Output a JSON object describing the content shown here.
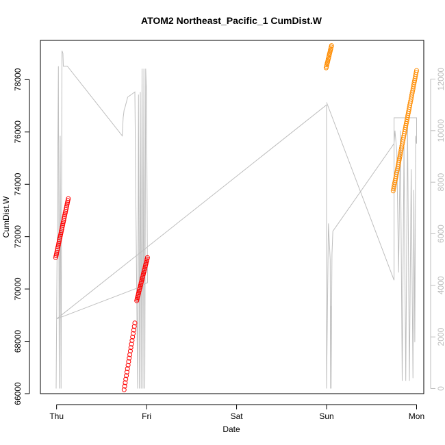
{
  "chart_data": {
    "type": "scatter",
    "title": "ATOM2 Northeast_Pacific_1 CumDist.W",
    "xlabel": "Date",
    "ylabel": "CumDist.W",
    "x_unit": "days since Thu 00:00",
    "xlim": [
      -0.18,
      4.08
    ],
    "ylim": [
      66000,
      79500
    ],
    "y_ticks": [
      66000,
      68000,
      70000,
      72000,
      74000,
      76000,
      78000
    ],
    "x_ticks": [
      {
        "value": 0,
        "label": "Thu"
      },
      {
        "value": 1,
        "label": "Fri"
      },
      {
        "value": 2,
        "label": "Sat"
      },
      {
        "value": 3,
        "label": "Sun"
      },
      {
        "value": 4,
        "label": "Mon"
      }
    ],
    "right_axis": {
      "ylim": [
        -200,
        13500
      ],
      "ticks": [
        0,
        2000,
        4000,
        6000,
        8000,
        10000,
        12000
      ],
      "color": "#bebebe"
    },
    "series": [
      {
        "kind": "points",
        "color": "#ff0000",
        "segments": [
          {
            "x": [
              -0.01,
              0.13
            ],
            "y": [
              71200,
              73450
            ],
            "n": 34
          },
          {
            "x": 0.75,
            "y_range": [
              66150,
              68700
            ],
            "n": 20,
            "mode": "sparse",
            "x_end": 0.87
          },
          {
            "x": [
              0.89,
              1.01
            ],
            "y": [
              69550,
              71200
            ],
            "n": 28
          }
        ]
      },
      {
        "kind": "points",
        "color": "#ff8c00",
        "segments": [
          {
            "x": [
              2.995,
              3.055
            ],
            "y": [
              78450,
              79300
            ],
            "n": 16
          },
          {
            "x": [
              3.74,
              4.0
            ],
            "y": [
              73750,
              78350
            ],
            "n": 60
          }
        ]
      },
      {
        "kind": "line",
        "axis": "right",
        "color": "#bebebe",
        "x": [
          -0.005,
          -0.005,
          0.0,
          0.02,
          0.03,
          0.04,
          0.05,
          0.06,
          0.07,
          0.075,
          0.085,
          0.095,
          0.1,
          0.12,
          0.73,
          0.74,
          0.75,
          0.76,
          0.79,
          0.83,
          0.87,
          0.9,
          0.91,
          0.92,
          0.93,
          0.94,
          0.95,
          0.96,
          0.97,
          0.98,
          0.99,
          1.0,
          1.01,
          1.005,
          0.95,
          0.9,
          0.0,
          0.0,
          3.0,
          3.0,
          3.02,
          3.04,
          3.045,
          3.045,
          3.05,
          3.06,
          3.07,
          3.75,
          3.76,
          3.78,
          3.8,
          3.82,
          3.84,
          3.86,
          3.88,
          3.9,
          3.92,
          3.94,
          3.96,
          3.97,
          3.98,
          3.99,
          4.0,
          4.0,
          3.75,
          3.75,
          3.0
        ],
        "y": [
          0,
          0,
          2700,
          12500,
          0,
          9800,
          0,
          13100,
          13000,
          12500,
          12500,
          12500,
          12500,
          12500,
          9800,
          10500,
          10800,
          10900,
          11300,
          11400,
          11500,
          0,
          11400,
          0,
          11500,
          0,
          12400,
          0,
          12400,
          0,
          12400,
          11400,
          4100,
          4100,
          4000,
          3900,
          2700,
          2700,
          11000,
          0,
          6400,
          5000,
          0,
          3200,
          0,
          5200,
          6100,
          9500,
          10000,
          9200,
          4500,
          10000,
          300,
          9400,
          300,
          10200,
          300,
          8500,
          400,
          7700,
          1800,
          9800,
          9500,
          10500,
          10500,
          4200,
          11100
        ]
      }
    ]
  }
}
